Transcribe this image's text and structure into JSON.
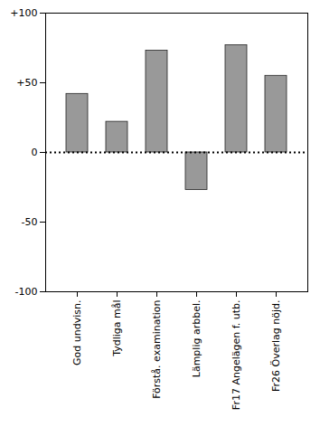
{
  "chart_data": {
    "type": "bar",
    "categories": [
      "God undvisn.",
      "Tydliga mål",
      "Förstå. examination",
      "Lämplig arbbel.",
      "Fr17 Angelägen f. utb.",
      "Fr26 Överlag nöjd."
    ],
    "values": [
      42,
      22,
      73,
      -27,
      77,
      55
    ],
    "color": "#999999",
    "ylim": [
      -100,
      100
    ],
    "yticks": [
      -100,
      -50,
      0,
      {
        "value": 50,
        "label": "+50"
      },
      {
        "value": 100,
        "label": "+100"
      }
    ],
    "grid": false
  }
}
